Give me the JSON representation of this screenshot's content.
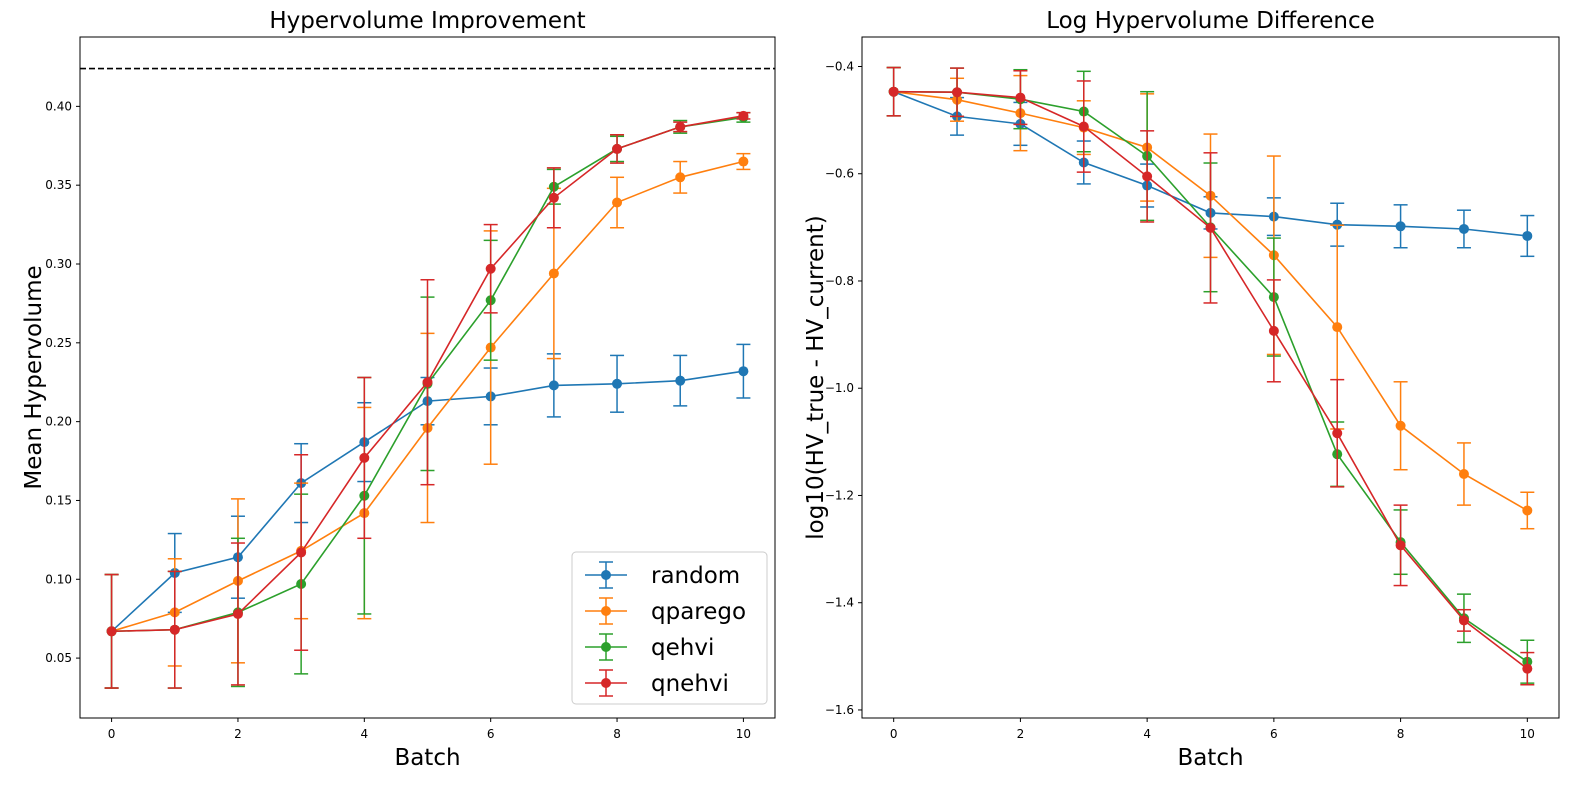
{
  "chart_data": [
    {
      "type": "line",
      "title": "Hypervolume Improvement",
      "xlabel": "Batch",
      "ylabel": "Mean Hypervolume",
      "xlim": [
        -0.5,
        10.5
      ],
      "ylim": [
        0.012,
        0.444
      ],
      "xticks": [
        0,
        2,
        4,
        6,
        8,
        10
      ],
      "yticks": [
        0.05,
        0.1,
        0.15,
        0.2,
        0.25,
        0.3,
        0.35,
        0.4
      ],
      "ytick_labels": [
        "0.05",
        "0.10",
        "0.15",
        "0.20",
        "0.25",
        "0.30",
        "0.35",
        "0.40"
      ],
      "reference_line": 0.424,
      "legend": "lower-right",
      "x": [
        0,
        1,
        2,
        3,
        4,
        5,
        6,
        7,
        8,
        9,
        10
      ],
      "series": [
        {
          "name": "random",
          "color": "#1f77b4",
          "values": [
            0.067,
            0.104,
            0.114,
            0.161,
            0.187,
            0.213,
            0.216,
            0.223,
            0.224,
            0.226,
            0.232
          ],
          "errors": [
            0.036,
            0.025,
            0.026,
            0.025,
            0.025,
            0.015,
            0.018,
            0.02,
            0.018,
            0.016,
            0.017
          ]
        },
        {
          "name": "qparego",
          "color": "#ff7f0e",
          "values": [
            0.067,
            0.079,
            0.099,
            0.118,
            0.142,
            0.196,
            0.247,
            0.294,
            0.339,
            0.355,
            0.365
          ],
          "errors": [
            0.036,
            0.034,
            0.052,
            0.043,
            0.067,
            0.06,
            0.074,
            0.054,
            0.016,
            0.01,
            0.005
          ]
        },
        {
          "name": "qehvi",
          "color": "#2ca02c",
          "values": [
            0.067,
            0.068,
            0.079,
            0.097,
            0.153,
            0.224,
            0.277,
            0.349,
            0.373,
            0.387,
            0.393
          ],
          "errors": [
            0.036,
            0.037,
            0.047,
            0.057,
            0.075,
            0.055,
            0.038,
            0.011,
            0.008,
            0.004,
            0.003
          ]
        },
        {
          "name": "qnehvi",
          "color": "#d62728",
          "values": [
            0.067,
            0.068,
            0.078,
            0.117,
            0.177,
            0.225,
            0.297,
            0.342,
            0.373,
            0.387,
            0.394
          ],
          "errors": [
            0.036,
            0.037,
            0.045,
            0.062,
            0.051,
            0.065,
            0.028,
            0.019,
            0.009,
            0.003,
            0.002
          ]
        }
      ]
    },
    {
      "type": "line",
      "title": "Log Hypervolume Difference",
      "xlabel": "Batch",
      "ylabel": "log10(HV_true - HV_current)",
      "xlim": [
        -0.5,
        10.5
      ],
      "ylim": [
        -1.615,
        -0.345
      ],
      "xticks": [
        0,
        2,
        4,
        6,
        8,
        10
      ],
      "yticks": [
        -1.6,
        -1.4,
        -1.2,
        -1.0,
        -0.8,
        -0.6,
        -0.4
      ],
      "ytick_labels": [
        "−1.6",
        "−1.4",
        "−1.2",
        "−1.0",
        "−0.8",
        "−0.6",
        "−0.4"
      ],
      "x": [
        0,
        1,
        2,
        3,
        4,
        5,
        6,
        7,
        8,
        9,
        10
      ],
      "series": [
        {
          "name": "random",
          "color": "#1f77b4",
          "values": [
            -0.447,
            -0.493,
            -0.507,
            -0.579,
            -0.622,
            -0.673,
            -0.68,
            -0.695,
            -0.698,
            -0.703,
            -0.716
          ],
          "errors": [
            0.045,
            0.035,
            0.04,
            0.04,
            0.04,
            0.03,
            0.035,
            0.04,
            0.04,
            0.035,
            0.038
          ]
        },
        {
          "name": "qparego",
          "color": "#ff7f0e",
          "values": [
            -0.447,
            -0.462,
            -0.487,
            -0.514,
            -0.551,
            -0.641,
            -0.752,
            -0.886,
            -1.07,
            -1.16,
            -1.228
          ],
          "errors": [
            0.045,
            0.04,
            0.07,
            0.05,
            0.1,
            0.115,
            0.185,
            0.19,
            0.082,
            0.058,
            0.034
          ]
        },
        {
          "name": "qehvi",
          "color": "#2ca02c",
          "values": [
            -0.447,
            -0.448,
            -0.461,
            -0.484,
            -0.567,
            -0.7,
            -0.83,
            -1.123,
            -1.287,
            -1.429,
            -1.51
          ],
          "errors": [
            0.045,
            0.045,
            0.055,
            0.075,
            0.12,
            0.12,
            0.11,
            0.06,
            0.06,
            0.045,
            0.04
          ]
        },
        {
          "name": "qnehvi",
          "color": "#d62728",
          "values": [
            -0.447,
            -0.448,
            -0.458,
            -0.512,
            -0.605,
            -0.701,
            -0.893,
            -1.084,
            -1.293,
            -1.433,
            -1.523
          ],
          "errors": [
            0.045,
            0.045,
            0.05,
            0.085,
            0.085,
            0.14,
            0.095,
            0.1,
            0.075,
            0.02,
            0.03
          ]
        }
      ]
    }
  ]
}
